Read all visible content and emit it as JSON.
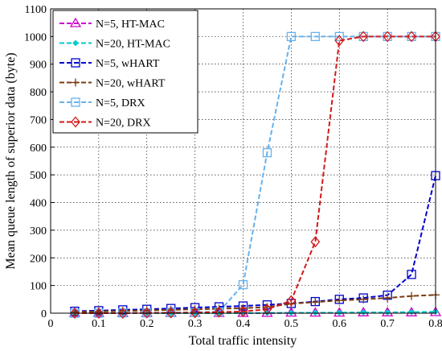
{
  "chart_data": {
    "type": "line",
    "title": "",
    "xlabel": "Total traffic intensity",
    "ylabel": "Mean queue length of superior data (byte)",
    "xlim": [
      0,
      0.8
    ],
    "ylim": [
      0,
      1100
    ],
    "xticks": [
      "0",
      "0.1",
      "0.2",
      "0.3",
      "0.4",
      "0.5",
      "0.6",
      "0.7",
      "0.8"
    ],
    "yticks": [
      "0",
      "100",
      "200",
      "300",
      "400",
      "500",
      "600",
      "700",
      "800",
      "900",
      "1000",
      "1100"
    ],
    "legend_position": "top-left",
    "x": [
      0.05,
      0.1,
      0.15,
      0.2,
      0.25,
      0.3,
      0.35,
      0.4,
      0.45,
      0.5,
      0.55,
      0.6,
      0.65,
      0.7,
      0.75,
      0.8
    ],
    "series": [
      {
        "name": "N=5, HT-MAC",
        "color": "#cc00cc",
        "marker": "triangle",
        "values": [
          0,
          0,
          0,
          0,
          0,
          0,
          0,
          0,
          0,
          1,
          1,
          1,
          2,
          2,
          2,
          3
        ]
      },
      {
        "name": "N=20, HT-MAC",
        "color": "#00cccc",
        "marker": "diamond-small",
        "values": [
          0,
          0,
          0,
          0,
          0,
          0,
          0,
          0,
          1,
          1,
          2,
          2,
          3,
          3,
          4,
          5
        ]
      },
      {
        "name": "N=5,  wHART",
        "color": "#0000cc",
        "marker": "square",
        "values": [
          7,
          9,
          12,
          14,
          17,
          20,
          23,
          26,
          30,
          35,
          42,
          50,
          55,
          65,
          140,
          497
        ]
      },
      {
        "name": "N=20, wHART",
        "color": "#7a3b10",
        "marker": "plus",
        "values": [
          4,
          6,
          8,
          10,
          12,
          14,
          16,
          18,
          22,
          34,
          40,
          46,
          50,
          55,
          62,
          66
        ]
      },
      {
        "name": "N=5, DRX",
        "color": "#66b2ee",
        "marker": "square",
        "values": [
          0,
          0,
          1,
          1,
          2,
          3,
          5,
          103,
          580,
          1000,
          1000,
          1000,
          1000,
          1000,
          1000,
          1000
        ]
      },
      {
        "name": "N=20, DRX",
        "color": "#d11a1a",
        "marker": "diamond",
        "values": [
          0,
          0,
          0,
          1,
          1,
          2,
          4,
          6,
          14,
          45,
          258,
          985,
          1000,
          1000,
          1000,
          1000
        ]
      }
    ]
  }
}
